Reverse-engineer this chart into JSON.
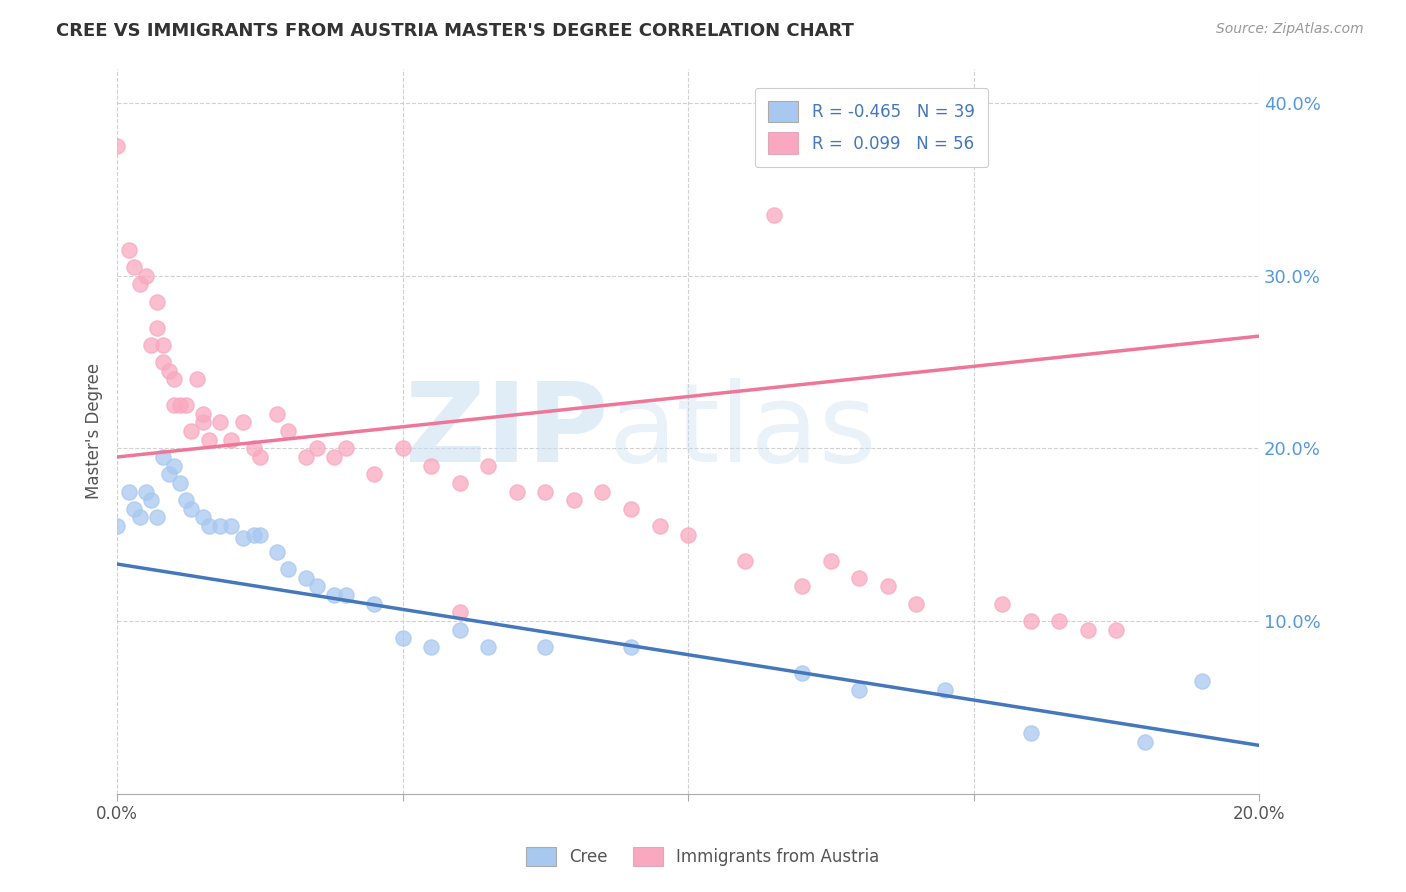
{
  "title": "CREE VS IMMIGRANTS FROM AUSTRIA MASTER'S DEGREE CORRELATION CHART",
  "source": "Source: ZipAtlas.com",
  "ylabel": "Master's Degree",
  "xlim": [
    0.0,
    0.2
  ],
  "ylim": [
    0.0,
    0.42
  ],
  "xticks": [
    0.0,
    0.05,
    0.1,
    0.15,
    0.2
  ],
  "xtick_labels": [
    "0.0%",
    "",
    "",
    "",
    "20.0%"
  ],
  "yticks": [
    0.1,
    0.2,
    0.3,
    0.4
  ],
  "ytick_labels": [
    "10.0%",
    "20.0%",
    "30.0%",
    "40.0%"
  ],
  "legend_R_cree": "-0.465",
  "legend_N_cree": "39",
  "legend_R_austria": "0.099",
  "legend_N_austria": "56",
  "cree_color": "#a8c8f0",
  "austria_color": "#f9a8c0",
  "cree_line_color": "#4477bb",
  "austria_line_color": "#ee7799",
  "watermark_zip": "ZIP",
  "watermark_atlas": "atlas",
  "background_color": "#ffffff",
  "grid_color": "#cccccc",
  "title_color": "#333333",
  "ytick_color": "#5599dd",
  "legend_text_color": "#4477bb",
  "cree_x": [
    0.0,
    0.002,
    0.003,
    0.004,
    0.005,
    0.006,
    0.007,
    0.008,
    0.009,
    0.01,
    0.011,
    0.012,
    0.013,
    0.015,
    0.016,
    0.018,
    0.02,
    0.022,
    0.024,
    0.025,
    0.028,
    0.03,
    0.033,
    0.035,
    0.038,
    0.04,
    0.045,
    0.05,
    0.055,
    0.06,
    0.065,
    0.075,
    0.09,
    0.12,
    0.13,
    0.145,
    0.16,
    0.18,
    0.19
  ],
  "cree_y": [
    0.155,
    0.175,
    0.165,
    0.16,
    0.175,
    0.17,
    0.16,
    0.195,
    0.185,
    0.19,
    0.18,
    0.17,
    0.165,
    0.16,
    0.155,
    0.155,
    0.155,
    0.148,
    0.15,
    0.15,
    0.14,
    0.13,
    0.125,
    0.12,
    0.115,
    0.115,
    0.11,
    0.09,
    0.085,
    0.095,
    0.085,
    0.085,
    0.085,
    0.07,
    0.06,
    0.06,
    0.035,
    0.03,
    0.065
  ],
  "austria_x": [
    0.0,
    0.002,
    0.003,
    0.004,
    0.005,
    0.006,
    0.007,
    0.007,
    0.008,
    0.008,
    0.009,
    0.01,
    0.01,
    0.011,
    0.012,
    0.013,
    0.014,
    0.015,
    0.015,
    0.016,
    0.018,
    0.02,
    0.022,
    0.024,
    0.025,
    0.028,
    0.03,
    0.033,
    0.035,
    0.038,
    0.04,
    0.045,
    0.05,
    0.055,
    0.06,
    0.065,
    0.07,
    0.075,
    0.08,
    0.085,
    0.09,
    0.095,
    0.1,
    0.11,
    0.12,
    0.125,
    0.13,
    0.135,
    0.14,
    0.155,
    0.16,
    0.165,
    0.17,
    0.175,
    0.115,
    0.06
  ],
  "austria_y": [
    0.375,
    0.315,
    0.305,
    0.295,
    0.3,
    0.26,
    0.285,
    0.27,
    0.26,
    0.25,
    0.245,
    0.24,
    0.225,
    0.225,
    0.225,
    0.21,
    0.24,
    0.22,
    0.215,
    0.205,
    0.215,
    0.205,
    0.215,
    0.2,
    0.195,
    0.22,
    0.21,
    0.195,
    0.2,
    0.195,
    0.2,
    0.185,
    0.2,
    0.19,
    0.18,
    0.19,
    0.175,
    0.175,
    0.17,
    0.175,
    0.165,
    0.155,
    0.15,
    0.135,
    0.12,
    0.135,
    0.125,
    0.12,
    0.11,
    0.11,
    0.1,
    0.1,
    0.095,
    0.095,
    0.335,
    0.105
  ],
  "cree_line_x": [
    0.0,
    0.2
  ],
  "cree_line_y": [
    0.133,
    0.028
  ],
  "austria_line_x": [
    0.0,
    0.2
  ],
  "austria_line_y": [
    0.195,
    0.265
  ]
}
